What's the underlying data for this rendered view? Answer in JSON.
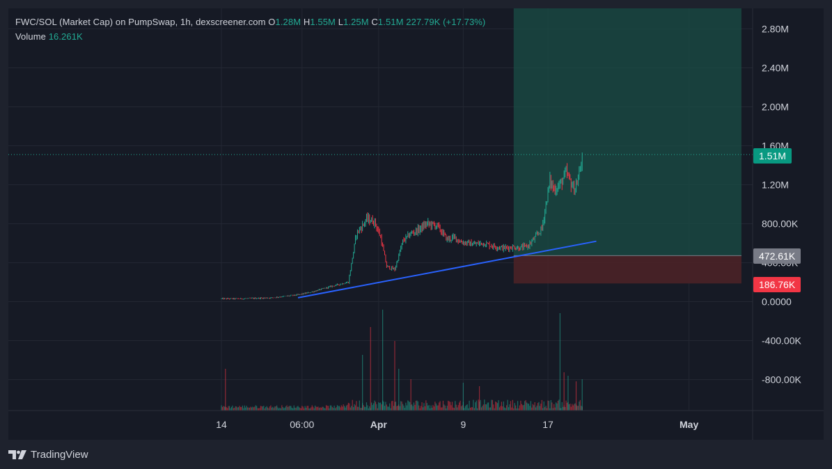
{
  "legend": {
    "symbol": "FWC/SOL (Market Cap) on PumpSwap, 1h, dexscreener.com",
    "o_label": "O",
    "o": "1.28M",
    "h_label": "H",
    "h": "1.55M",
    "l_label": "L",
    "l": "1.25M",
    "c_label": "C",
    "c": "1.51M",
    "change": "227.79K (+17.73%)",
    "volume_label": "Volume",
    "volume": "16.261K"
  },
  "price_tags": {
    "current": "1.51M",
    "entry": "472.61K",
    "stop": "186.76K"
  },
  "footer": {
    "brand": "TradingView"
  },
  "colors": {
    "background": "#161a25",
    "grid": "#232733",
    "up": "#22ab94",
    "down": "#f23645",
    "trendline": "#2962ff",
    "profit_zone": "#1a4d45",
    "loss_zone": "#4a2227"
  },
  "chart_data": {
    "type": "candlestick",
    "symbol": "FWC/SOL (Market Cap)",
    "interval": "1h",
    "y_axis": {
      "ticks": [
        2800000,
        2400000,
        2000000,
        1600000,
        1200000,
        800000,
        400000,
        0,
        -400000,
        -800000
      ],
      "tick_labels": [
        "2.80M",
        "2.40M",
        "2.00M",
        "1.60M",
        "1.20M",
        "800.00K",
        "400.00K",
        "0.0000",
        "-400.00K",
        "-800.00K"
      ],
      "ylim": [
        -1100000,
        3000000
      ]
    },
    "x_axis": {
      "tick_labels": [
        "14",
        "06:00",
        "Apr",
        "9",
        "17",
        "May"
      ],
      "tick_times": [
        0,
        40,
        78,
        120,
        162,
        232
      ],
      "xlim": [
        -104,
        258
      ]
    },
    "last_price": 1510000,
    "ohlc_last": {
      "open": 1280000,
      "high": 1550000,
      "low": 1250000,
      "close": 1510000
    },
    "change": {
      "abs": 227790,
      "pct": 17.73
    },
    "last_volume": 16261,
    "position": {
      "entry": 472610,
      "stop": 186760,
      "target": 3000000,
      "start_time": 145,
      "end_time": 258
    },
    "trendline": {
      "x": [
        38,
        186
      ],
      "y": [
        40000,
        620000
      ]
    },
    "price_path": {
      "time": [
        0,
        10,
        25,
        38,
        45,
        55,
        63,
        67,
        70,
        72,
        76,
        79,
        82,
        86,
        90,
        94,
        98,
        102,
        107,
        112,
        116,
        118,
        122,
        125,
        130,
        135,
        140,
        145,
        148,
        152,
        155,
        159,
        161,
        163,
        165,
        168,
        171,
        175,
        177,
        179
      ],
      "value": [
        30000,
        30000,
        40000,
        70000,
        100000,
        160000,
        200000,
        700000,
        780000,
        850000,
        820000,
        660000,
        360000,
        330000,
        620000,
        700000,
        740000,
        800000,
        780000,
        640000,
        660000,
        620000,
        600000,
        590000,
        600000,
        570000,
        550000,
        560000,
        550000,
        570000,
        640000,
        750000,
        1000000,
        1240000,
        1150000,
        1200000,
        1320000,
        1150000,
        1250000,
        1510000
      ]
    },
    "volume_spikes": {
      "time": [
        2,
        70,
        74,
        80,
        86,
        88,
        94,
        120,
        128,
        168,
        170,
        172,
        176,
        179
      ],
      "value": [
        60,
        80,
        120,
        145,
        100,
        60,
        45,
        40,
        35,
        140,
        55,
        50,
        42,
        45
      ]
    }
  }
}
